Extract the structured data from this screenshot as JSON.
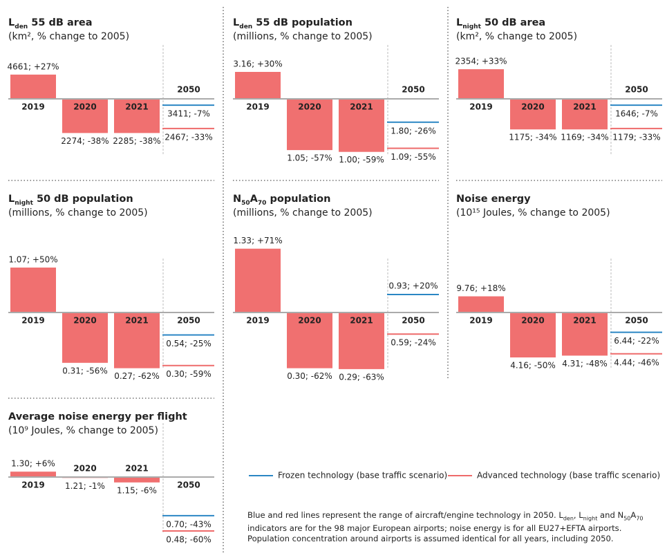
{
  "chart_data": [
    {
      "type": "bar",
      "title": [
        "L",
        "den",
        " 55 dB area"
      ],
      "subtitle": "(km², % change to 2005)",
      "categories": [
        "2019",
        "2020",
        "2021",
        "2050"
      ],
      "values": [
        27,
        -38,
        -38,
        null
      ],
      "value_labels": [
        "4661; +27%",
        "2274; -38%",
        "2285; -38%",
        null
      ],
      "scenarios": [
        {
          "value": -7,
          "label": "3411; -7%"
        },
        {
          "value": -33,
          "label": "2467; -33%"
        }
      ]
    },
    {
      "type": "bar",
      "title": [
        "L",
        "den",
        " 55 dB population"
      ],
      "subtitle": "(millions, % change to 2005)",
      "categories": [
        "2019",
        "2020",
        "2021",
        "2050"
      ],
      "values": [
        30,
        -57,
        -59,
        null
      ],
      "value_labels": [
        "3.16; +30%",
        "1.05; -57%",
        "1.00; -59%",
        null
      ],
      "scenarios": [
        {
          "value": -26,
          "label": "1.80; -26%"
        },
        {
          "value": -55,
          "label": "1.09; -55%"
        }
      ]
    },
    {
      "type": "bar",
      "title": [
        "L",
        "night",
        " 50 dB area"
      ],
      "subtitle": "(km², % change to 2005)",
      "categories": [
        "2019",
        "2020",
        "2021",
        "2050"
      ],
      "values": [
        33,
        -34,
        -34,
        null
      ],
      "value_labels": [
        "2354; +33%",
        "1175; -34%",
        "1169; -34%",
        null
      ],
      "scenarios": [
        {
          "value": -7,
          "label": "1646; -7%"
        },
        {
          "value": -33,
          "label": "1179; -33%"
        }
      ]
    },
    {
      "type": "bar",
      "title": [
        "L",
        "night",
        " 50 dB population"
      ],
      "subtitle": "(millions, % change to 2005)",
      "categories": [
        "2019",
        "2020",
        "2021",
        "2050"
      ],
      "values": [
        50,
        -56,
        -62,
        null
      ],
      "value_labels": [
        "1.07; +50%",
        "0.31; -56%",
        "0.27; -62%",
        null
      ],
      "scenarios": [
        {
          "value": -25,
          "label": "0.54; -25%"
        },
        {
          "value": -59,
          "label": "0.30; -59%"
        }
      ]
    },
    {
      "type": "bar",
      "title": [
        "N",
        "50",
        "A",
        "70",
        " population"
      ],
      "subtitle": "(millions, % change to 2005)",
      "categories": [
        "2019",
        "2020",
        "2021",
        "2050"
      ],
      "values": [
        71,
        -62,
        -63,
        null
      ],
      "value_labels": [
        "1.33; +71%",
        "0.30; -62%",
        "0.29; -63%",
        null
      ],
      "scenarios": [
        {
          "value": 20,
          "label": "0.93; +20%"
        },
        {
          "value": -24,
          "label": "0.59; -24%"
        }
      ]
    },
    {
      "type": "bar",
      "title": [
        "Noise energy"
      ],
      "subtitle": "(10¹⁵ Joules, % change to 2005)",
      "categories": [
        "2019",
        "2020",
        "2021",
        "2050"
      ],
      "values": [
        18,
        -50,
        -48,
        null
      ],
      "value_labels": [
        "9.76; +18%",
        "4.16; -50%",
        "4.31; -48%",
        null
      ],
      "scenarios": [
        {
          "value": -22,
          "label": "6.44; -22%"
        },
        {
          "value": -46,
          "label": "4.44; -46%"
        }
      ]
    },
    {
      "type": "bar",
      "title": [
        "Average noise energy per flight"
      ],
      "subtitle": "(10⁹ Joules, % change to 2005)",
      "categories": [
        "2019",
        "2020",
        "2021",
        "2050"
      ],
      "values": [
        6,
        -1,
        -6,
        null
      ],
      "value_labels": [
        "1.30; +6%",
        "1.21; -1%",
        "1.15; -6%",
        null
      ],
      "scenarios": [
        {
          "value": -43,
          "label": "0.70; -43%"
        },
        {
          "value": -60,
          "label": "0.48; -60%"
        }
      ]
    }
  ],
  "bar_color": "#f07070",
  "legend": [
    {
      "name": "Frozen technology (base traffic scenario)",
      "color": "#2a86c4"
    },
    {
      "name": "Advanced technology (base traffic scenario)",
      "color": "#ee6a6a"
    }
  ],
  "note": [
    "Blue and red lines represent the range of aircraft/engine technology in 2050. L",
    "den",
    ", L",
    "night",
    " and N",
    "50",
    "A",
    "70",
    " indicators are for the 98 major European airports; noise energy is for all EU27+EFTA airports. Population concentration around airports is assumed identical for all years, including 2050."
  ]
}
